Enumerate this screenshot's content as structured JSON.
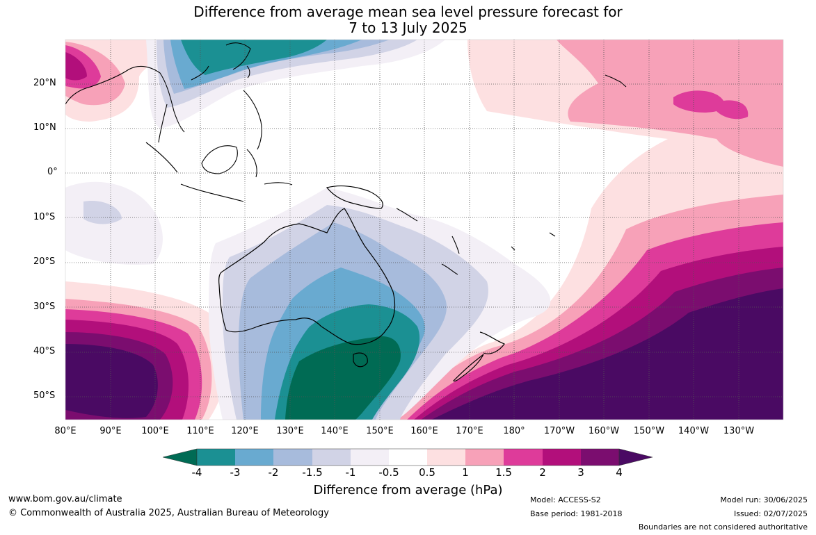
{
  "header": {
    "title_line1": "Difference from average mean sea level pressure forecast for",
    "title_line2": "7 to 13 July 2025"
  },
  "map": {
    "lat_labels": [
      "20°N",
      "10°N",
      "0°",
      "10°S",
      "20°S",
      "30°S",
      "40°S",
      "50°S"
    ],
    "lon_labels": [
      "80°E",
      "90°E",
      "100°E",
      "110°E",
      "120°E",
      "130°E",
      "140°E",
      "150°E",
      "160°E",
      "170°E",
      "180°",
      "170°W",
      "160°W",
      "150°W",
      "140°W",
      "130°W"
    ],
    "colors": {
      "m4": "#006b54",
      "m3": "#1b9093",
      "m2": "#69aad0",
      "m15": "#a7bbdc",
      "m1": "#d1d3e6",
      "m05": "#f3eff6",
      "zero": "#ffffff",
      "p05": "#fde0e1",
      "p1": "#f7a1b8",
      "p15": "#de3b9a",
      "p2": "#b20f7b",
      "p3": "#7b0d6f",
      "p4": "#4a0a63"
    }
  },
  "colorbar": {
    "tick_labels": [
      "-4",
      "-3",
      "-2",
      "-1.5",
      "-1",
      "-0.5",
      "0.5",
      "1",
      "1.5",
      "2",
      "3",
      "4"
    ],
    "title": "Difference from average (hPa)"
  },
  "footer": {
    "website": "www.bom.gov.au/climate",
    "copyright": "© Commonwealth of Australia 2025, Australian Bureau of Meteorology",
    "model": "Model: ACCESS-S2",
    "base_period": "Base period: 1981-2018",
    "model_run": "Model run: 30/06/2025",
    "issued": "Issued: 02/07/2025",
    "disclaimer": "Boundaries are not considered authoritative"
  }
}
